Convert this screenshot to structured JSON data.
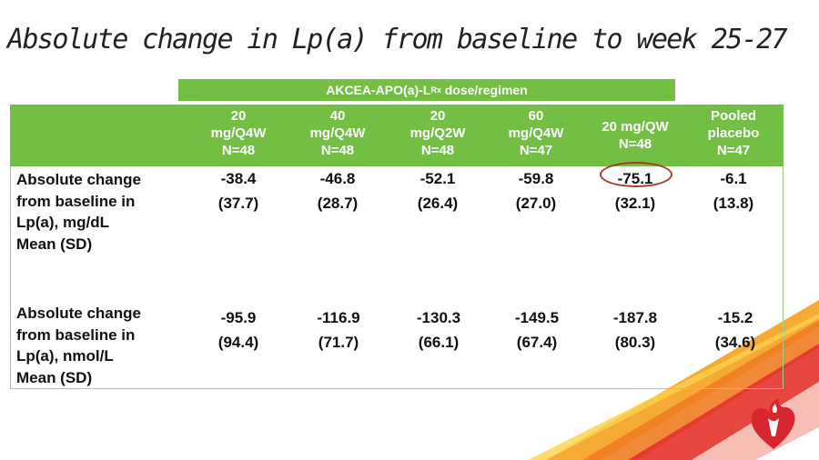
{
  "slide": {
    "title": "Absolute change in Lp(a) from baseline to week 25-27"
  },
  "table": {
    "group_header": {
      "text": "AKCEA-APO(a)-L",
      "subscript": "Rx",
      "suffix": " dose/regimen"
    },
    "columns": [
      {
        "line1": "20",
        "line2": "mg/Q4W",
        "line3": "N=48"
      },
      {
        "line1": "40",
        "line2": "mg/Q4W",
        "line3": "N=48"
      },
      {
        "line1": "20",
        "line2": "mg/Q2W",
        "line3": "N=48"
      },
      {
        "line1": "60",
        "line2": "mg/Q4W",
        "line3": "N=47"
      },
      {
        "line1": "20 mg/QW",
        "line2": "N=48",
        "line3": ""
      },
      {
        "line1": "Pooled",
        "line2": "placebo",
        "line3": "N=47"
      }
    ],
    "rows": [
      {
        "label_lines": [
          "Absolute change",
          "from baseline in",
          "Lp(a), mg/dL",
          "Mean (SD)"
        ],
        "cells": [
          {
            "mean": "-38.4",
            "sd": "(37.7)"
          },
          {
            "mean": "-46.8",
            "sd": "(28.7)"
          },
          {
            "mean": "-52.1",
            "sd": "(26.4)"
          },
          {
            "mean": "-59.8",
            "sd": "(27.0)"
          },
          {
            "mean": "-75.1",
            "sd": "(32.1)"
          },
          {
            "mean": "-6.1",
            "sd": "(13.8)"
          }
        ]
      },
      {
        "label_lines": [
          "Absolute change",
          "from baseline in",
          "Lp(a), nmol/L",
          "Mean (SD)"
        ],
        "cells": [
          {
            "mean": "-95.9",
            "sd": "(94.4)"
          },
          {
            "mean": "-116.9",
            "sd": "(71.7)"
          },
          {
            "mean": "-130.3",
            "sd": "(66.1)"
          },
          {
            "mean": "-149.5",
            "sd": "(67.4)"
          },
          {
            "mean": "-187.8",
            "sd": "(80.3)"
          },
          {
            "mean": "-15.2",
            "sd": "(34.6)"
          }
        ]
      }
    ]
  },
  "colors": {
    "header_green": "#72bf44",
    "highlight_circle": "#a33b2a",
    "brand_red": "#d7262e",
    "ribbon_orange": "#f4a11d"
  },
  "icons": {
    "brand_logo": "heart-torch-icon"
  }
}
